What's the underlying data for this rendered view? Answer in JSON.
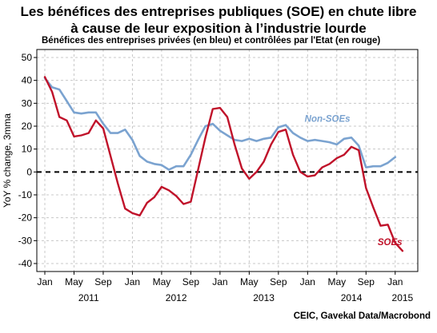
{
  "title_lines": [
    "Les bénéfices des entreprises publiques (SOE) en chute libre",
    "à cause de leur exposition à l’industrie lourde"
  ],
  "source": "CEIC, Gavekal Data/Macrobond",
  "colors": {
    "soes": "#c0122a",
    "non_soes": "#7ba3d0",
    "zero_line": "#000000",
    "grid": "#c8c8c8"
  },
  "chart_data": {
    "type": "line",
    "title": "Les bénéfices des entreprises publiques (SOE) en chute libre à cause de leur exposition à l’industrie lourde",
    "subtitle": "Bénéfices des entreprises privées (en bleu) et contrôlées par l'Etat (en rouge)",
    "ylabel": "YoY % change, 3mma",
    "xlabel": "",
    "ylim": [
      -40,
      50
    ],
    "yticks": [
      -40,
      -30,
      -20,
      -10,
      0,
      10,
      20,
      30,
      40,
      50
    ],
    "grid": true,
    "x_tick_labels": [
      "Jan",
      "May",
      "Sep",
      "Jan",
      "May",
      "Sep",
      "Jan",
      "May",
      "Sep",
      "Jan",
      "May",
      "Sep",
      "Jan"
    ],
    "x_tick_months": [
      0,
      4,
      8,
      12,
      16,
      20,
      24,
      28,
      32,
      36,
      40,
      44,
      48
    ],
    "year_labels": [
      {
        "label": "2011",
        "month": 6
      },
      {
        "label": "2012",
        "month": 18
      },
      {
        "label": "2013",
        "month": 30
      },
      {
        "label": "2014",
        "month": 42
      },
      {
        "label": "2015",
        "month": 49
      }
    ],
    "x_range_months": [
      0,
      50
    ],
    "x_start": "2011-01",
    "series": [
      {
        "name": "Non-SOEs",
        "color": "#7ba3d0",
        "x_months": [
          0,
          1,
          2,
          3,
          4,
          5,
          6,
          7,
          8,
          9,
          10,
          11,
          12,
          13,
          14,
          15,
          16,
          17,
          18,
          19,
          20,
          21,
          22,
          23,
          24,
          25,
          26,
          27,
          28,
          29,
          30,
          31,
          32,
          33,
          34,
          35,
          36,
          37,
          38,
          39,
          40,
          41,
          42,
          43,
          44,
          45,
          46,
          47,
          48,
          49,
          50
        ],
        "values": [
          41,
          37,
          36,
          31,
          26,
          25.5,
          26,
          26,
          21,
          17,
          17,
          18.5,
          14,
          7,
          4.5,
          3.5,
          3,
          1,
          2.5,
          2.5,
          7.5,
          14,
          20,
          21,
          18,
          16,
          14,
          13.5,
          14.5,
          13.5,
          14.5,
          15,
          19.5,
          20.5,
          17,
          15,
          13.5,
          14,
          13.5,
          13,
          12,
          14.5,
          15,
          11.5,
          2,
          2.5,
          2.5,
          4,
          6.5,
          null,
          null
        ]
      },
      {
        "name": "SOEs",
        "color": "#c0122a",
        "x_months": [
          0,
          1,
          2,
          3,
          4,
          5,
          6,
          7,
          8,
          9,
          10,
          11,
          12,
          13,
          14,
          15,
          16,
          17,
          18,
          19,
          20,
          21,
          22,
          23,
          24,
          25,
          26,
          27,
          28,
          29,
          30,
          31,
          32,
          33,
          34,
          35,
          36,
          37,
          38,
          39,
          40,
          41,
          42,
          43,
          44,
          45,
          46,
          47,
          48,
          49,
          50
        ],
        "values": [
          41.5,
          35,
          24,
          22.5,
          15.5,
          16,
          17,
          22.5,
          19,
          7,
          -5,
          -16,
          -18,
          -19,
          -13.5,
          -11,
          -6.5,
          -8,
          -10.5,
          -14,
          -13,
          1,
          15,
          27.5,
          28,
          24,
          12,
          1.5,
          -3,
          0,
          4.5,
          12,
          17.5,
          18.5,
          7.5,
          0,
          -2,
          -1.5,
          2,
          3.5,
          6,
          7.5,
          11,
          9.5,
          -7,
          -15.5,
          -23.5,
          -23,
          -31,
          -34.5,
          null
        ]
      }
    ],
    "annotations": [
      {
        "text": "Non-SOEs",
        "series": "Non-SOEs",
        "month": 35.6,
        "value": 22
      },
      {
        "text": "SOEs",
        "series": "SOEs",
        "month": 45.6,
        "value": -32
      }
    ],
    "reference_line": {
      "value": 0,
      "style": "dashed"
    }
  }
}
